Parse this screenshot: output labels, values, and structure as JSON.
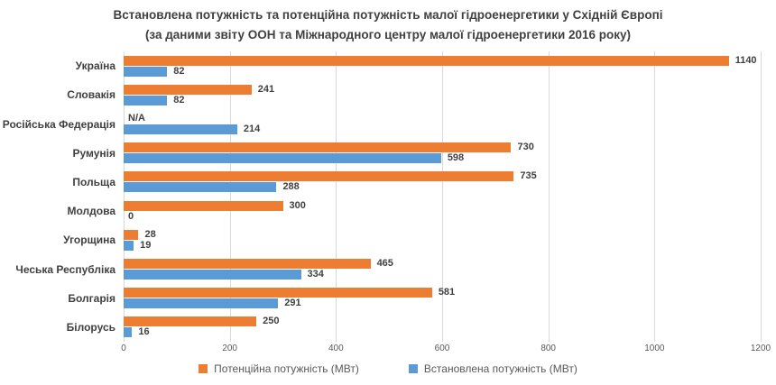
{
  "title": {
    "line1": "Встановлена потужність та потенційна потужність малої гідроенергетики у Східній Європі",
    "line2": "(за даними звіту ООН та Міжнародного центру малої гідроенергетики 2016 року)"
  },
  "chart_data": {
    "type": "bar",
    "orientation": "horizontal",
    "categories": [
      "Україна",
      "Словакія",
      "Російська Федерація",
      "Румунія",
      "Польща",
      "Молдова",
      "Угорщина",
      "Чеська Республіка",
      "Болгарія",
      "Білорусь"
    ],
    "series": [
      {
        "name": "Потенційна потужність (МВт)",
        "color": "#ED7D31",
        "values": [
          1140,
          241,
          null,
          730,
          735,
          300,
          28,
          465,
          581,
          250
        ],
        "labels": [
          "1140",
          "241",
          "N/A",
          "730",
          "735",
          "300",
          "28",
          "465",
          "581",
          "250"
        ]
      },
      {
        "name": "Встановлена потужність (МВт)",
        "color": "#5B9BD5",
        "values": [
          82,
          82,
          214,
          598,
          288,
          0,
          19,
          334,
          291,
          16
        ],
        "labels": [
          "82",
          "82",
          "214",
          "598",
          "288",
          "0",
          "19",
          "334",
          "291",
          "16"
        ]
      }
    ],
    "xlim": [
      0,
      1200
    ],
    "xticks": [
      0,
      200,
      400,
      600,
      800,
      1000,
      1200
    ],
    "grid": "vertical",
    "legend_position": "bottom",
    "gridline_color": "#D9D9D9",
    "label_color": "#404040",
    "tick_color": "#595959"
  }
}
